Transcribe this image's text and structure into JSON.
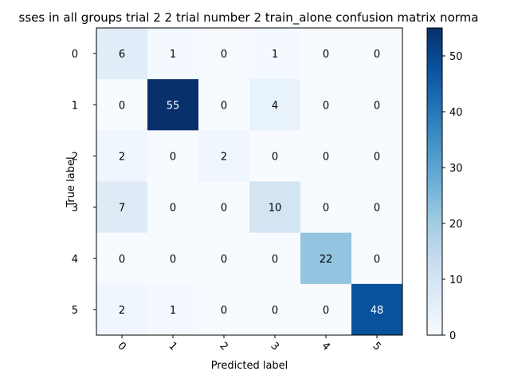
{
  "chart_data": {
    "type": "heatmap",
    "title": "sses in all groups trial 2 2 trial number 2 train_alone confusion matrix norma",
    "xlabel": "Predicted label",
    "ylabel": "True label",
    "x_categories": [
      "0",
      "1",
      "2",
      "3",
      "4",
      "5"
    ],
    "y_categories": [
      "0",
      "1",
      "2",
      "3",
      "4",
      "5"
    ],
    "values": [
      [
        6,
        1,
        0,
        1,
        0,
        0
      ],
      [
        0,
        55,
        0,
        4,
        0,
        0
      ],
      [
        2,
        0,
        2,
        0,
        0,
        0
      ],
      [
        7,
        0,
        0,
        10,
        0,
        0
      ],
      [
        0,
        0,
        0,
        0,
        22,
        0
      ],
      [
        2,
        1,
        0,
        0,
        0,
        48
      ]
    ],
    "colormap": "Blues",
    "vmin": 0,
    "vmax": 55,
    "colorbar_ticks": [
      0,
      10,
      20,
      30,
      40,
      50
    ],
    "x_tick_rotation": 45
  }
}
